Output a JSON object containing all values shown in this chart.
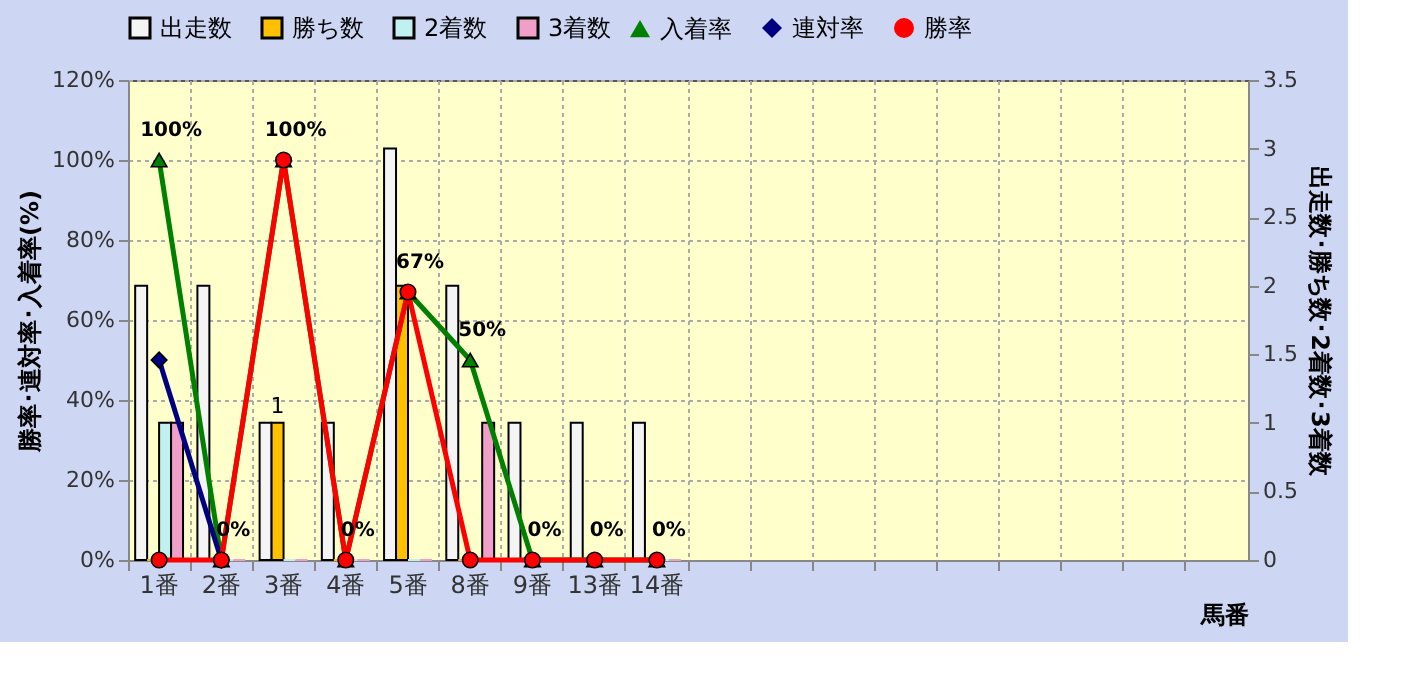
{
  "chart_data": {
    "type": "bar",
    "categories": [
      "1番",
      "2番",
      "3番",
      "4番",
      "5番",
      "8番",
      "9番",
      "13番",
      "14番",
      null,
      null,
      null,
      null,
      null,
      null,
      null,
      null,
      null
    ],
    "xlabel": "馬番",
    "ylabel": "勝率･連対率･入着率(%)",
    "y2label": "出走数･勝ち数･2着数･3着数",
    "ylim": [
      0,
      120
    ],
    "yticks": [
      {
        "value": 0,
        "label": "0%"
      },
      {
        "value": 20,
        "label": "20%"
      },
      {
        "value": 40,
        "label": "40%"
      },
      {
        "value": 60,
        "label": "60%"
      },
      {
        "value": 80,
        "label": "80%"
      },
      {
        "value": 100,
        "label": "100%"
      },
      {
        "value": 120,
        "label": "120%"
      }
    ],
    "y2lim": [
      0,
      3.5
    ],
    "y2ticks": [
      0,
      0.5,
      1,
      1.5,
      2,
      2.5,
      3,
      3.5
    ],
    "grid": true,
    "legend": "top",
    "series": [
      {
        "name": "出走数",
        "axis": "y2",
        "color": "#f4f4f4",
        "values": [
          2,
          2,
          1,
          1,
          3,
          2,
          1,
          1,
          1,
          null,
          null,
          null,
          null,
          null,
          null,
          null,
          null,
          null
        ]
      },
      {
        "name": "勝ち数",
        "axis": "y2",
        "color": "#ffc000",
        "values": [
          0,
          0,
          1,
          0,
          2,
          0,
          0,
          0,
          0,
          null,
          null,
          null,
          null,
          null,
          null,
          null,
          null,
          null
        ],
        "value_labels": [
          null,
          null,
          "1",
          null,
          null,
          null,
          null,
          null,
          null,
          null,
          null,
          null,
          null,
          null,
          null,
          null,
          null,
          null
        ]
      },
      {
        "name": "2着数",
        "axis": "y2",
        "color": "#c0f0f0",
        "values": [
          1,
          0,
          0,
          0,
          0,
          0,
          0,
          0,
          0,
          null,
          null,
          null,
          null,
          null,
          null,
          null,
          null,
          null
        ]
      },
      {
        "name": "3着数",
        "axis": "y2",
        "color": "#f0a0c8",
        "values": [
          1,
          0,
          0,
          0,
          0,
          1,
          0,
          0,
          0,
          null,
          null,
          null,
          null,
          null,
          null,
          null,
          null,
          null
        ]
      },
      {
        "name": "入着率",
        "type": "line",
        "axis": "y",
        "color": "#008000",
        "marker": "triangle",
        "values": [
          100,
          0,
          100,
          0,
          67,
          50,
          0,
          0,
          0,
          null,
          null,
          null,
          null,
          null,
          null,
          null,
          null,
          null
        ],
        "value_labels": [
          "100%",
          "0%",
          "100%",
          "0%",
          "67%",
          "50%",
          "0%",
          "0%",
          "0%",
          null,
          null,
          null,
          null,
          null,
          null,
          null,
          null,
          null
        ]
      },
      {
        "name": "連対率",
        "type": "line",
        "axis": "y",
        "color": "#000080",
        "marker": "diamond",
        "values": [
          50,
          0,
          null,
          null,
          null,
          null,
          null,
          null,
          null,
          null,
          null,
          null,
          null,
          null,
          null,
          null,
          null,
          null
        ]
      },
      {
        "name": "勝率",
        "type": "line",
        "axis": "y",
        "color": "#ff0000",
        "marker": "circle",
        "values": [
          0,
          0,
          100,
          0,
          67,
          0,
          0,
          0,
          0,
          null,
          null,
          null,
          null,
          null,
          null,
          null,
          null,
          null
        ]
      }
    ]
  }
}
